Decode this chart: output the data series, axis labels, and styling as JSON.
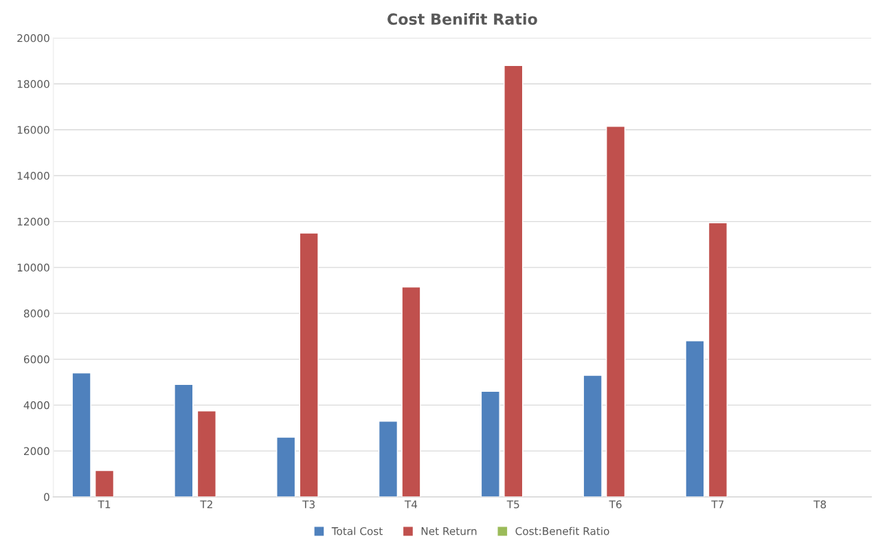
{
  "chart_data": {
    "type": "bar",
    "title": "Cost Benifit Ratio",
    "categories": [
      "T1",
      "T2",
      "T3",
      "T4",
      "T5",
      "T6",
      "T7",
      "T8"
    ],
    "series": [
      {
        "name": "Total Cost",
        "color": "#4f81bd",
        "values": [
          5400,
          4900,
          2600,
          3300,
          4600,
          5300,
          6800,
          null
        ]
      },
      {
        "name": "Net Return",
        "color": "#c0504d",
        "values": [
          1150,
          3750,
          11500,
          9150,
          18800,
          16150,
          11950,
          null
        ]
      },
      {
        "name": "Cost:Benefit Ratio",
        "color": "#9bbb59",
        "values": [
          null,
          null,
          null,
          null,
          null,
          null,
          null,
          null
        ]
      }
    ],
    "ylim": [
      0,
      20000
    ],
    "yticks": [
      0,
      2000,
      4000,
      6000,
      8000,
      10000,
      12000,
      14000,
      16000,
      18000,
      20000
    ],
    "grid": "y",
    "legend": "bottom"
  }
}
